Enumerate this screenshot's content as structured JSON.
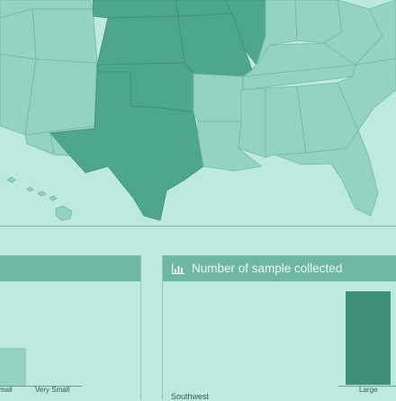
{
  "map": {
    "highlight_color": "#4fa68f",
    "base_color": "#94d3c3"
  },
  "left_panel": {
    "title": "",
    "chart_data": {
      "type": "bar",
      "categories": [
        "Small",
        "Very Small"
      ],
      "visible_tick_labels": [
        "mall",
        "Very Small"
      ]
    }
  },
  "right_panel": {
    "title": "Number of sample collected",
    "icon": "bar-chart-icon",
    "region": "Southwest",
    "chart_data": {
      "type": "bar",
      "categories": [
        "Large"
      ],
      "values": [
        1
      ]
    }
  }
}
